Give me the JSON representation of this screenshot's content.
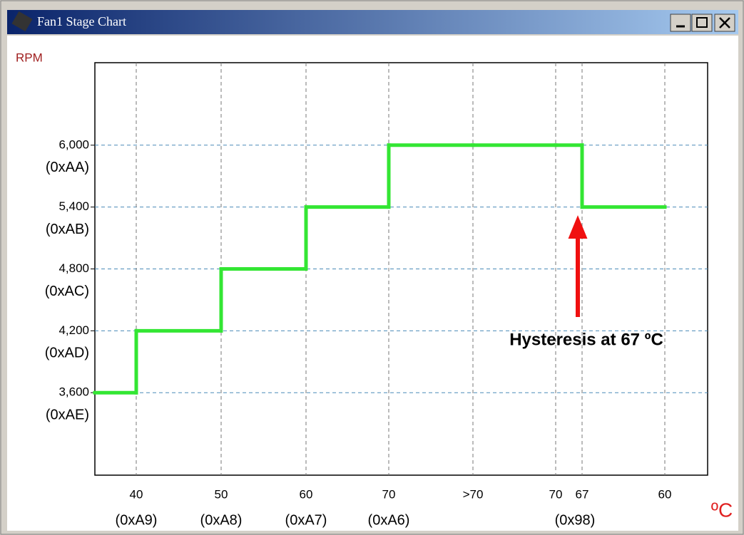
{
  "window": {
    "title": "Fan1 Stage Chart"
  },
  "chart_data": {
    "type": "step",
    "ylabel": "RPM",
    "xlabel": "ºC",
    "categories": [
      "40",
      "50",
      "60",
      "70",
      ">70",
      "70",
      "67",
      "60"
    ],
    "category_sublabels": [
      "(0xA9)",
      "(0xA8)",
      "(0xA7)",
      "(0xA6)",
      null,
      null,
      "(0x98)",
      null
    ],
    "series": [
      {
        "name": "Fan1",
        "color": "#33e633",
        "values": [
          3600,
          4200,
          4800,
          5400,
          6000,
          6000,
          6000,
          5400
        ]
      }
    ],
    "ylim": [
      2800,
      6800
    ],
    "yticks": [
      {
        "value": 3600,
        "label": "3,600"
      },
      {
        "value": 4200,
        "label": "4,200"
      },
      {
        "value": 4800,
        "label": "4,800"
      },
      {
        "value": 5400,
        "label": "5,400"
      },
      {
        "value": 6000,
        "label": "6,000"
      }
    ],
    "ytick_sublabels": [
      "(0xAE)",
      "(0xAD)",
      "(0xAC)",
      "(0xAB)",
      "(0xAA)"
    ],
    "annotation": "Hysteresis at 67 ºC",
    "grid": true
  }
}
